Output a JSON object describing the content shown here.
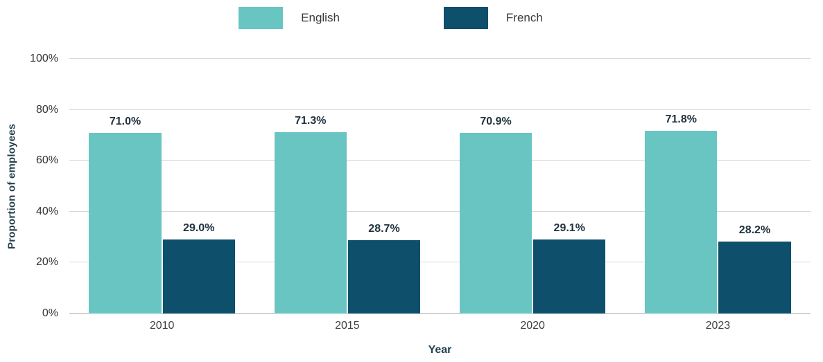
{
  "chart_data": {
    "type": "bar",
    "title": "",
    "categories": [
      "2010",
      "2015",
      "2020",
      "2023"
    ],
    "series": [
      {
        "name": "English",
        "color": "#68c5c1",
        "values": [
          71.0,
          71.3,
          70.9,
          71.8
        ],
        "labels": [
          "71.0%",
          "71.3%",
          "70.9%",
          "71.8%"
        ]
      },
      {
        "name": "French",
        "color": "#0e506b",
        "values": [
          29.0,
          28.7,
          29.1,
          28.2
        ],
        "labels": [
          "29.0%",
          "28.7%",
          "29.1%",
          "28.2%"
        ]
      }
    ],
    "xlabel": "Year",
    "ylabel": "Proportion of employees",
    "ylim": [
      0,
      100
    ],
    "yticks": [
      0,
      20,
      40,
      60,
      80,
      100
    ],
    "ytick_labels": [
      "0%",
      "20%",
      "40%",
      "60%",
      "80%",
      "100%"
    ],
    "legend_position": "top",
    "grid": true
  },
  "colors": {
    "grid": "#d8d8d8",
    "axis_text": "#333333",
    "value_label": "#21333f",
    "axis_title": "#24404f"
  }
}
